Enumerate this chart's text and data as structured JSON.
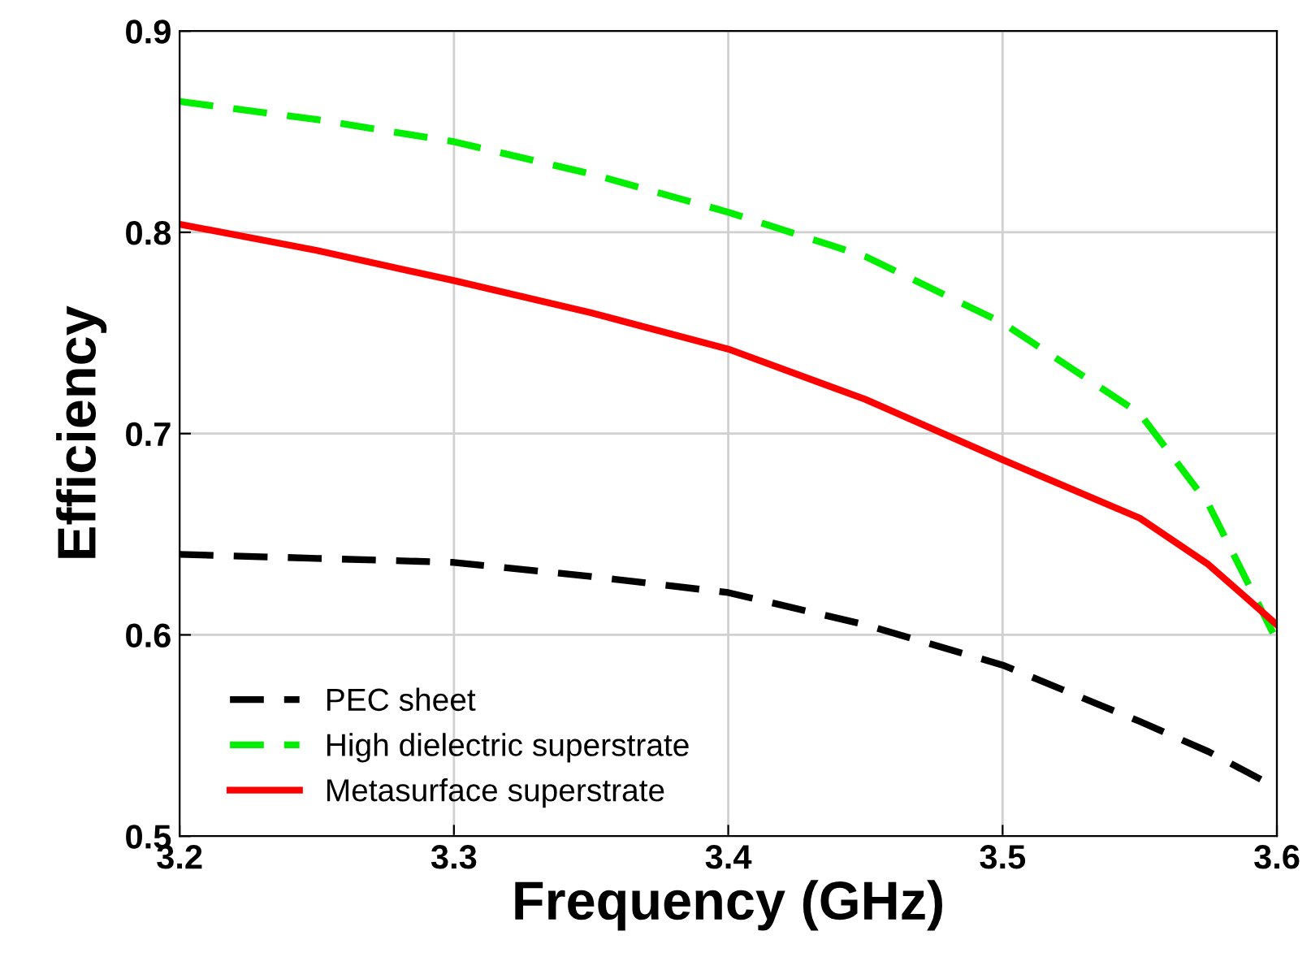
{
  "chart_data": {
    "type": "line",
    "xlabel": "Frequency (GHz)",
    "ylabel": "Efficiency",
    "x": [
      3.2,
      3.25,
      3.3,
      3.35,
      3.4,
      3.45,
      3.5,
      3.55,
      3.575,
      3.6
    ],
    "series": [
      {
        "name": "PEC sheet",
        "color": "#000000",
        "line_style": "dashed",
        "values": [
          0.64,
          0.638,
          0.636,
          0.629,
          0.621,
          0.605,
          0.585,
          0.557,
          0.542,
          0.524
        ]
      },
      {
        "name": "High dielectric superstrate",
        "color": "#00ee00",
        "line_style": "dashed",
        "values": [
          0.865,
          0.856,
          0.845,
          0.829,
          0.81,
          0.788,
          0.755,
          0.71,
          0.665,
          0.597
        ]
      },
      {
        "name": "Metasurface superstrate",
        "color": "#ff0000",
        "line_style": "solid",
        "values": [
          0.804,
          0.791,
          0.776,
          0.76,
          0.742,
          0.717,
          0.687,
          0.658,
          0.635,
          0.605
        ]
      }
    ],
    "xlim": [
      3.2,
      3.6
    ],
    "xticks": [
      3.2,
      3.3,
      3.4,
      3.5,
      3.6
    ],
    "ylim": [
      0.5,
      0.9
    ],
    "yticks": [
      0.5,
      0.6,
      0.7,
      0.8,
      0.9
    ],
    "grid": true,
    "legend": "bottom left",
    "marker": "none"
  }
}
